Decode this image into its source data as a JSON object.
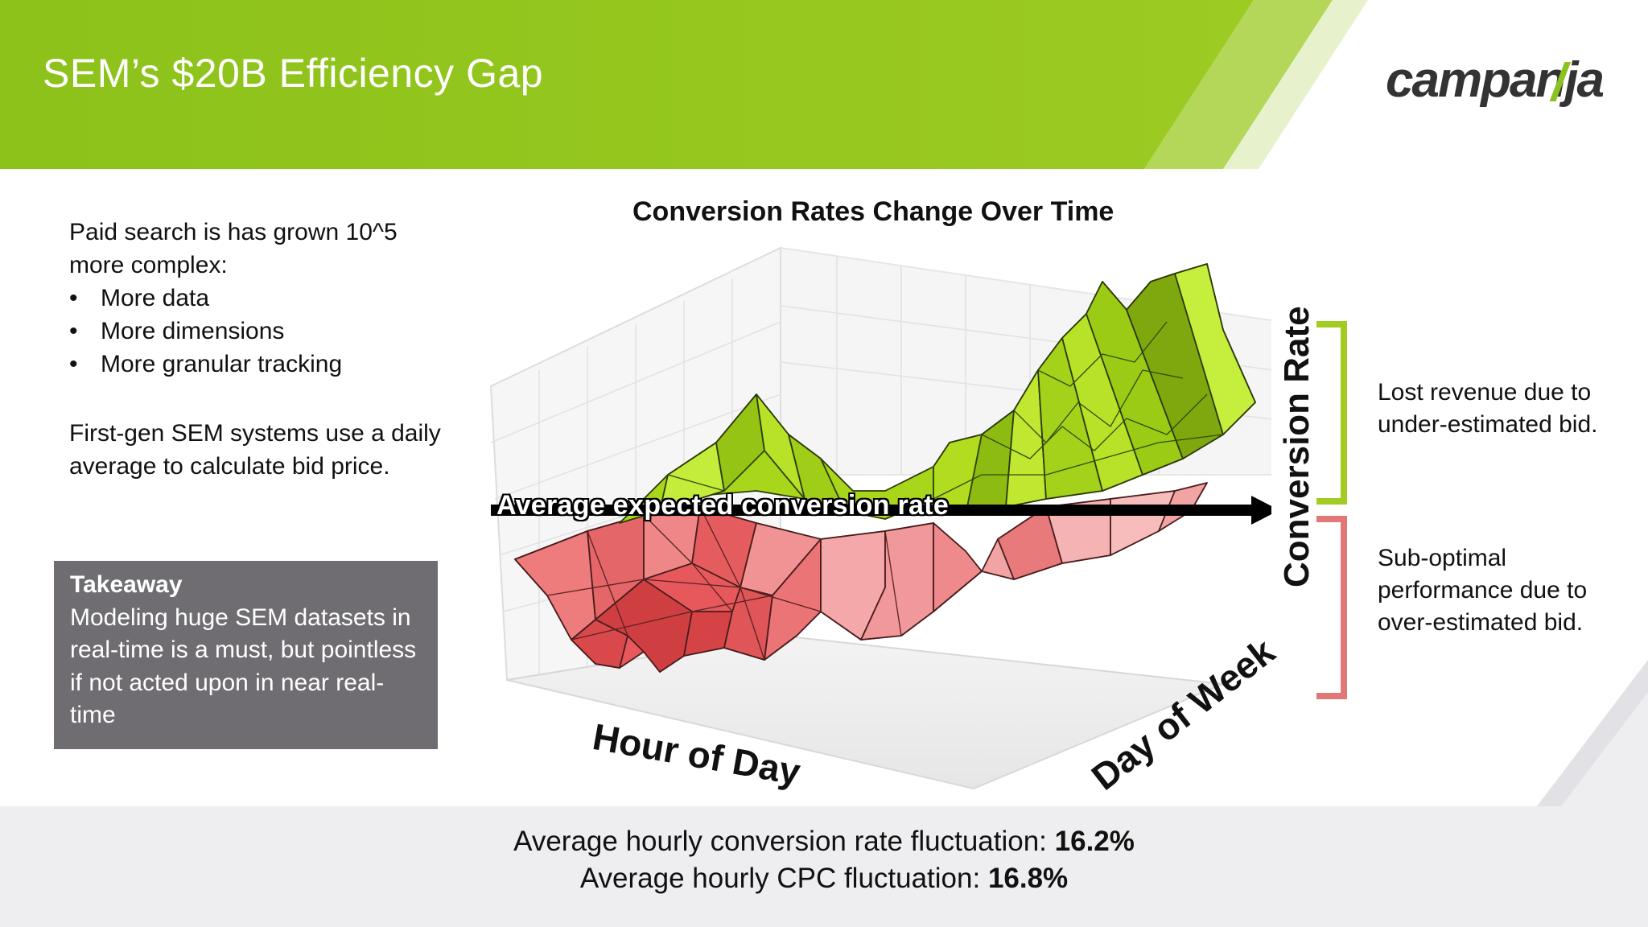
{
  "header": {
    "title": "SEM’s $20B Efficiency Gap",
    "logo_text": "campanja",
    "logo_mark": "/",
    "brand_color": "#92c21e"
  },
  "left": {
    "intro": "Paid search is has grown 10^5 more complex:",
    "bullets": [
      "More data",
      "More dimensions",
      "More granular tracking"
    ],
    "paragraph": "First-gen SEM systems use a daily average to calculate bid price."
  },
  "takeaway": {
    "title": "Takeaway",
    "body": "Modeling huge SEM datasets in real-time is a must, but pointless if not acted upon in near real-time"
  },
  "chart": {
    "title": "Conversion Rates Change Over Time",
    "avg_label": "Average expected conversion rate",
    "z_axis_label": "Conversion Rate",
    "x_axis_label": "Hour of Day",
    "y_axis_label": "Day of Week",
    "above_color": "#b6e01c",
    "below_color": "#e8696b"
  },
  "annotations": {
    "above": "Lost revenue due to under-estimated bid.",
    "below": "Sub-optimal performance due to over-estimated bid.",
    "above_color": "#a3cc22",
    "below_color": "#e07878"
  },
  "footer": {
    "line1_text": "Average hourly conversion rate fluctuation: ",
    "line1_value": "16.2%",
    "line2_text": "Average hourly CPC fluctuation: ",
    "line2_value": "16.8%"
  }
}
